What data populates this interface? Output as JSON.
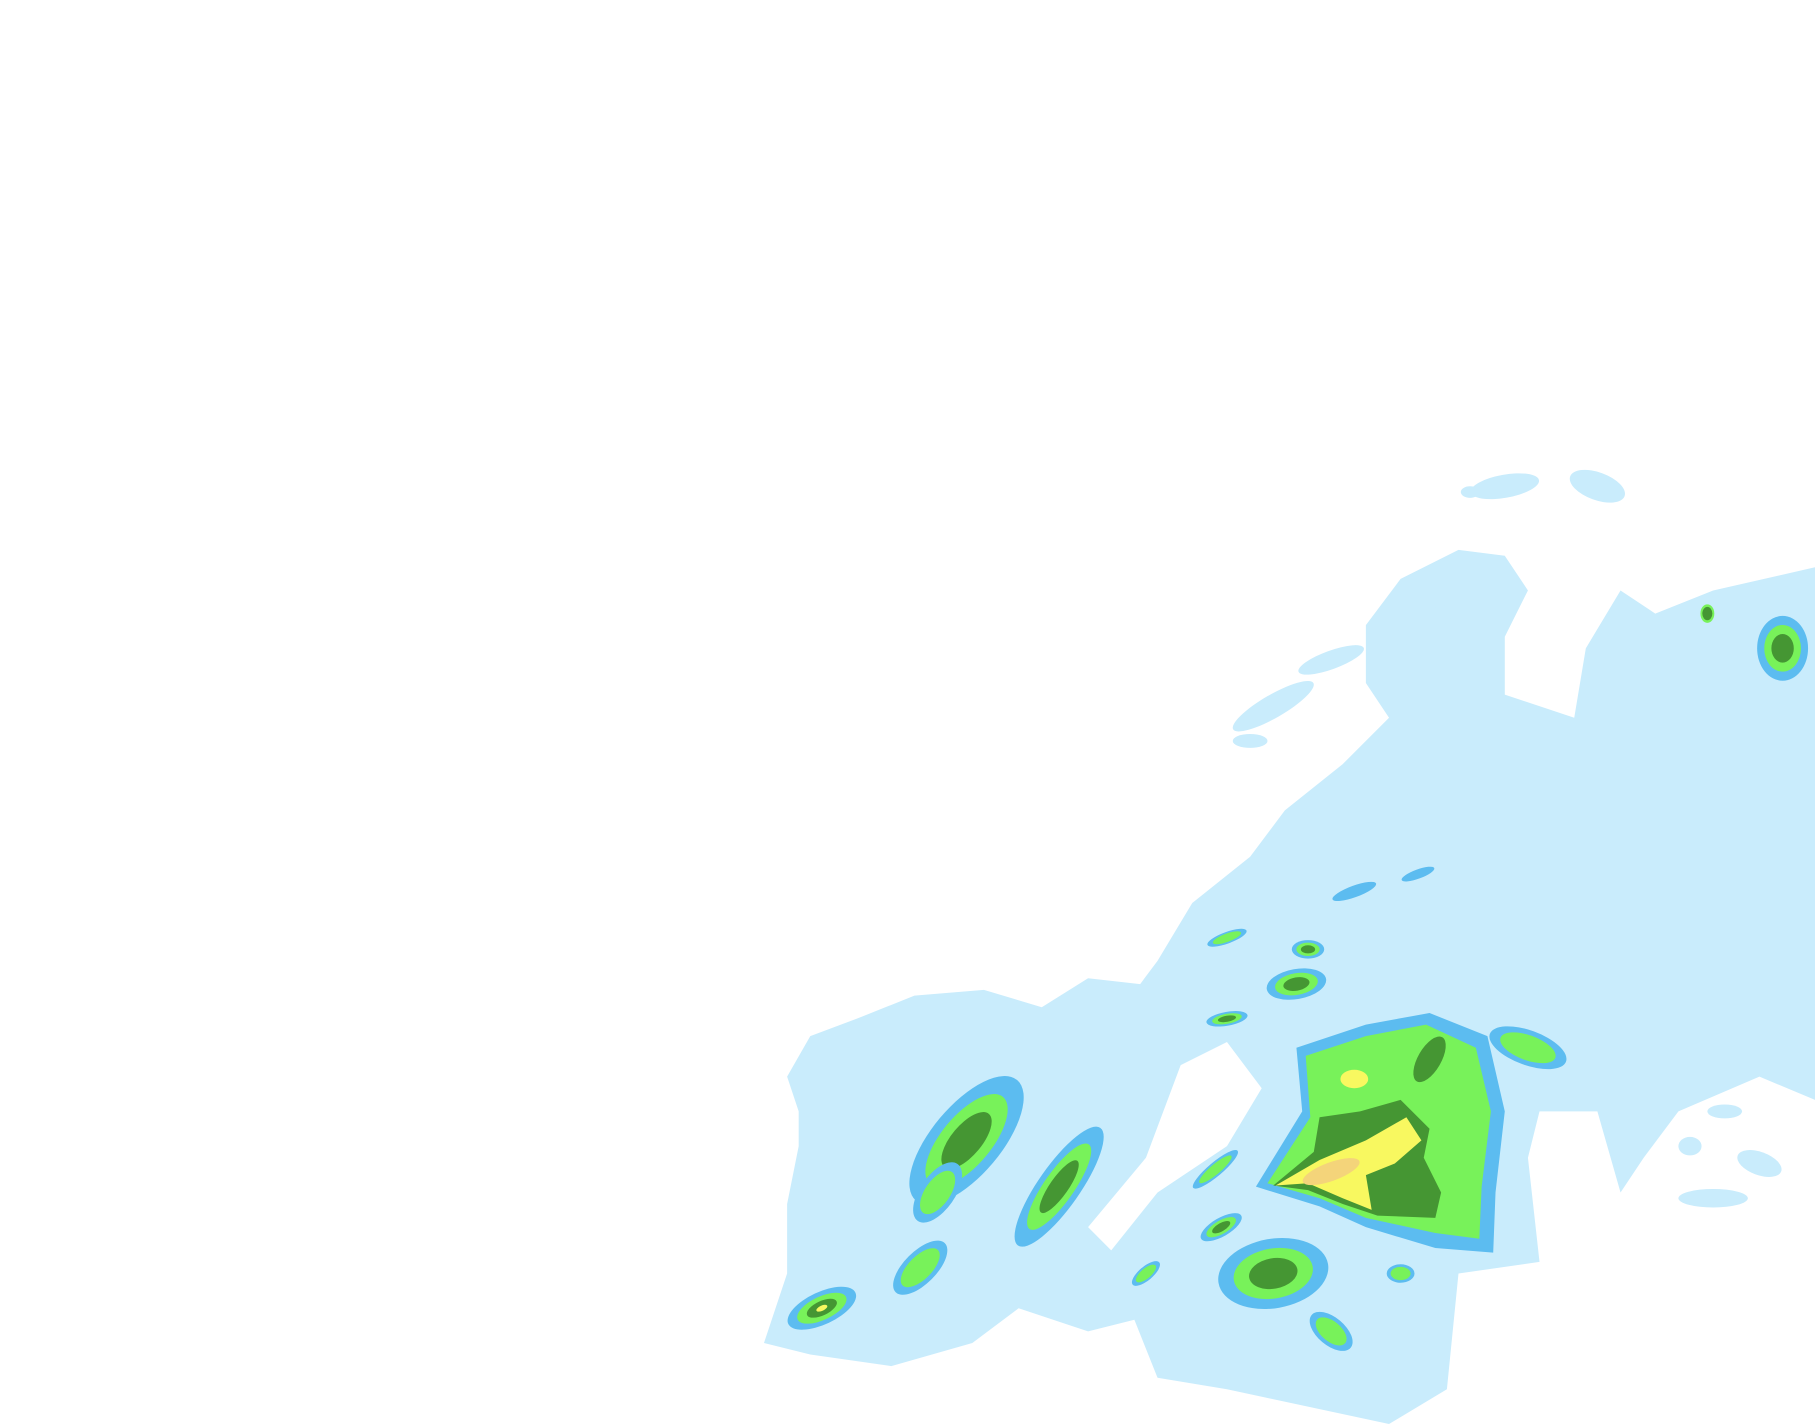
{
  "map": {
    "background": "#ffffff",
    "precipitation_colors": {
      "very_light": "#c9ecfc",
      "light": "#5cbcf0",
      "moderate": "#78f25a",
      "heavy": "#459633",
      "very_heavy": "#f8f860",
      "intense": "#f4d47a"
    }
  }
}
